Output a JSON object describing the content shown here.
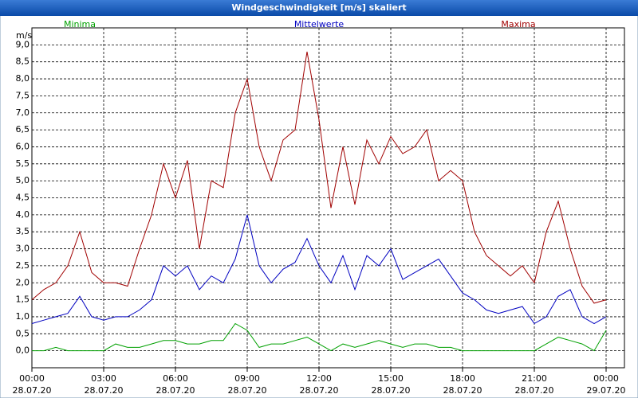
{
  "chart_data": {
    "type": "line",
    "title": "Windgeschwindigkeit [m/s] skaliert",
    "y_unit": "m/s",
    "x": [
      0,
      0.5,
      1,
      1.5,
      2,
      2.5,
      3,
      3.5,
      4,
      4.5,
      5,
      5.5,
      6,
      6.5,
      7,
      7.5,
      8,
      8.5,
      9,
      9.5,
      10,
      10.5,
      11,
      11.5,
      12,
      12.5,
      13,
      13.5,
      14,
      14.5,
      15,
      15.5,
      16,
      16.5,
      17,
      17.5,
      18,
      18.5,
      19,
      19.5,
      20,
      20.5,
      21,
      21.5,
      22,
      22.5,
      23,
      23.5,
      24
    ],
    "series": [
      {
        "name": "Minima",
        "color": "#00a000",
        "values": [
          0,
          0,
          0.1,
          0,
          0,
          0,
          0,
          0.2,
          0.1,
          0.1,
          0.2,
          0.3,
          0.3,
          0.2,
          0.2,
          0.3,
          0.3,
          0.8,
          0.6,
          0.1,
          0.2,
          0.2,
          0.3,
          0.4,
          0.2,
          0,
          0.2,
          0.1,
          0.2,
          0.3,
          0.2,
          0.1,
          0.2,
          0.2,
          0.1,
          0.1,
          0,
          0,
          0,
          0,
          0,
          0,
          0,
          0.2,
          0.4,
          0.3,
          0.2,
          0,
          0.6
        ]
      },
      {
        "name": "Mittelwerte",
        "color": "#0000c0",
        "values": [
          0.8,
          0.9,
          1.0,
          1.1,
          1.6,
          1.0,
          0.9,
          1.0,
          1.0,
          1.2,
          1.5,
          2.5,
          2.2,
          2.5,
          1.8,
          2.2,
          2.0,
          2.7,
          4.0,
          2.5,
          2.0,
          2.4,
          2.6,
          3.3,
          2.5,
          2.0,
          2.8,
          1.8,
          2.8,
          2.5,
          3.0,
          2.1,
          2.3,
          2.5,
          2.7,
          2.2,
          1.7,
          1.5,
          1.2,
          1.1,
          1.2,
          1.3,
          0.8,
          1.0,
          1.6,
          1.8,
          1.0,
          0.8,
          1.0
        ]
      },
      {
        "name": "Maxima",
        "color": "#a00000",
        "values": [
          1.5,
          1.8,
          2.0,
          2.5,
          3.5,
          2.3,
          2.0,
          2.0,
          1.9,
          3.0,
          4.0,
          5.5,
          4.5,
          5.6,
          3.0,
          5.0,
          4.8,
          7.0,
          8.0,
          6.0,
          5.0,
          6.2,
          6.5,
          8.8,
          6.8,
          4.2,
          6.0,
          4.3,
          6.2,
          5.5,
          6.3,
          5.8,
          6.0,
          6.5,
          5.0,
          5.3,
          5.0,
          3.5,
          2.8,
          2.5,
          2.2,
          2.5,
          2.0,
          3.5,
          4.4,
          3.0,
          1.9,
          1.4,
          1.5
        ]
      }
    ],
    "xlim": [
      0,
      24
    ],
    "xticks": [
      {
        "value": 0,
        "label": "00:00"
      },
      {
        "value": 3,
        "label": "03:00"
      },
      {
        "value": 6,
        "label": "06:00"
      },
      {
        "value": 9,
        "label": "09:00"
      },
      {
        "value": 12,
        "label": "12:00"
      },
      {
        "value": 15,
        "label": "15:00"
      },
      {
        "value": 18,
        "label": "18:00"
      },
      {
        "value": 21,
        "label": "21:00"
      },
      {
        "value": 24,
        "label": "00:00"
      }
    ],
    "xtick_dates": [
      "28.07.20",
      "28.07.20",
      "28.07.20",
      "28.07.20",
      "28.07.20",
      "28.07.20",
      "28.07.20",
      "28.07.20",
      "29.07.20"
    ],
    "ylim": [
      -0.5,
      9.5
    ],
    "yticks": [
      {
        "value": 0,
        "label": "0,0"
      },
      {
        "value": 0.5,
        "label": "0,5"
      },
      {
        "value": 1,
        "label": "1,0"
      },
      {
        "value": 1.5,
        "label": "1,5"
      },
      {
        "value": 2,
        "label": "2,0"
      },
      {
        "value": 2.5,
        "label": "2,5"
      },
      {
        "value": 3,
        "label": "3,0"
      },
      {
        "value": 3.5,
        "label": "3,5"
      },
      {
        "value": 4,
        "label": "4,0"
      },
      {
        "value": 4.5,
        "label": "4,5"
      },
      {
        "value": 5,
        "label": "5,0"
      },
      {
        "value": 5.5,
        "label": "5,5"
      },
      {
        "value": 6,
        "label": "6,0"
      },
      {
        "value": 6.5,
        "label": "6,5"
      },
      {
        "value": 7,
        "label": "7,0"
      },
      {
        "value": 7.5,
        "label": "7,5"
      },
      {
        "value": 8,
        "label": "8,0"
      },
      {
        "value": 8.5,
        "label": "8,5"
      },
      {
        "value": 9,
        "label": "9,0"
      }
    ],
    "grid": true
  }
}
